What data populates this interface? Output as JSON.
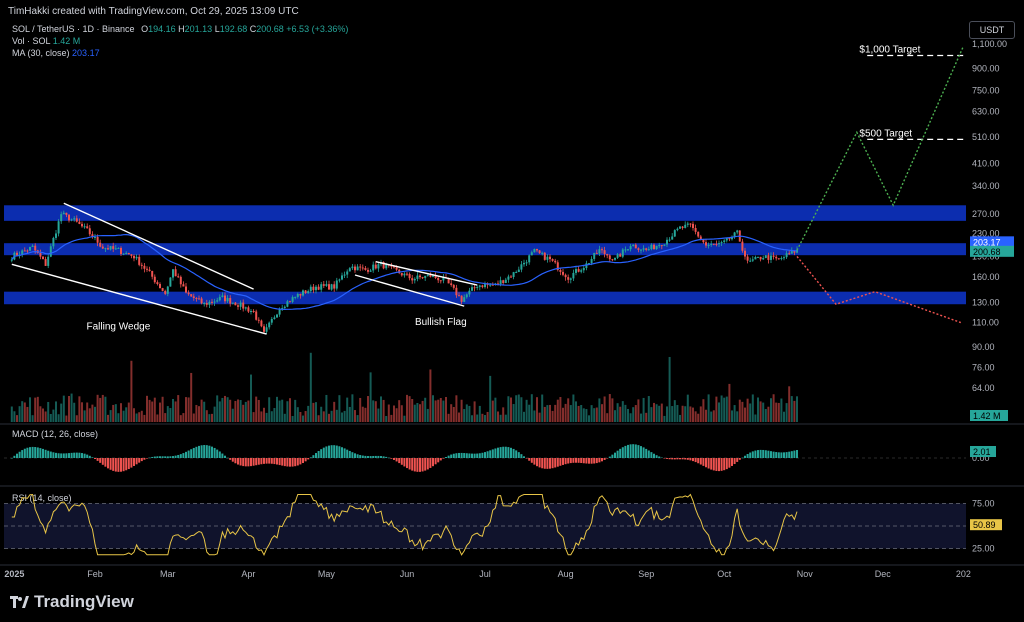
{
  "header": {
    "created_by": "TimHakki created with TradingView.com, Oct 29, 2025 13:09 UTC",
    "symbol": "SOL / TetherUS · 1D · Binance",
    "ohlc": {
      "o_label": "O",
      "o": "194.16",
      "h_label": "H",
      "h": "201.13",
      "l_label": "L",
      "l": "192.68",
      "c_label": "C",
      "c": "200.68",
      "change": "+6.53 (+3.36%)"
    },
    "vol_label": "Vol · SOL",
    "vol_value": "1.42 M",
    "ma_label": "MA (30, close)",
    "ma_value": "203.17",
    "currency": "USDT"
  },
  "brand": "TradingView",
  "colors": {
    "up": "#26a69a",
    "down": "#ef5350",
    "ma": "#2962ff",
    "zone": "#0d2fb8",
    "rsi": "#e8c547",
    "projection_up": "#4caf50",
    "projection_down": "#ef5350",
    "background": "#000000"
  },
  "chart_data": [
    {
      "type": "candlestick",
      "title": "SOL / TetherUS · 1D · Binance",
      "scale": "log",
      "x_tick_labels": [
        "2025",
        "Feb",
        "Mar",
        "Apr",
        "May",
        "Jun",
        "Jul",
        "Aug",
        "Sep",
        "Oct",
        "Nov",
        "Dec",
        "202"
      ],
      "y_tick_labels": [
        "1,100.00",
        "900.00",
        "750.00",
        "630.00",
        "510.00",
        "410.00",
        "340.00",
        "270.00",
        "230.00",
        "190.00",
        "160.00",
        "130.00",
        "110.00",
        "90.00",
        "76.00",
        "64.00"
      ],
      "ylim": [
        58,
        1100
      ],
      "last_price": 200.68,
      "ma_last": 203.17,
      "anchors": [
        {
          "date": "2024-12-31",
          "close": 190
        },
        {
          "date": "2025-01-08",
          "close": 205
        },
        {
          "date": "2025-01-13",
          "close": 178
        },
        {
          "date": "2025-01-19",
          "close": 270
        },
        {
          "date": "2025-01-24",
          "close": 255
        },
        {
          "date": "2025-01-29",
          "close": 235
        },
        {
          "date": "2025-02-04",
          "close": 205
        },
        {
          "date": "2025-02-10",
          "close": 200
        },
        {
          "date": "2025-02-16",
          "close": 190
        },
        {
          "date": "2025-02-22",
          "close": 165
        },
        {
          "date": "2025-02-28",
          "close": 140
        },
        {
          "date": "2025-03-03",
          "close": 170
        },
        {
          "date": "2025-03-08",
          "close": 140
        },
        {
          "date": "2025-03-15",
          "close": 128
        },
        {
          "date": "2025-03-22",
          "close": 135
        },
        {
          "date": "2025-03-28",
          "close": 128
        },
        {
          "date": "2025-04-03",
          "close": 120
        },
        {
          "date": "2025-04-07",
          "close": 100
        },
        {
          "date": "2025-04-13",
          "close": 125
        },
        {
          "date": "2025-04-20",
          "close": 138
        },
        {
          "date": "2025-04-27",
          "close": 148
        },
        {
          "date": "2025-05-04",
          "close": 148
        },
        {
          "date": "2025-05-10",
          "close": 175
        },
        {
          "date": "2025-05-16",
          "close": 170
        },
        {
          "date": "2025-05-22",
          "close": 178
        },
        {
          "date": "2025-05-28",
          "close": 168
        },
        {
          "date": "2025-06-03",
          "close": 158
        },
        {
          "date": "2025-06-10",
          "close": 162
        },
        {
          "date": "2025-06-16",
          "close": 155
        },
        {
          "date": "2025-06-22",
          "close": 133
        },
        {
          "date": "2025-06-28",
          "close": 150
        },
        {
          "date": "2025-07-05",
          "close": 150
        },
        {
          "date": "2025-07-12",
          "close": 165
        },
        {
          "date": "2025-07-20",
          "close": 198
        },
        {
          "date": "2025-07-26",
          "close": 185
        },
        {
          "date": "2025-08-02",
          "close": 160
        },
        {
          "date": "2025-08-09",
          "close": 178
        },
        {
          "date": "2025-08-14",
          "close": 200
        },
        {
          "date": "2025-08-20",
          "close": 185
        },
        {
          "date": "2025-08-26",
          "close": 210
        },
        {
          "date": "2025-09-01",
          "close": 200
        },
        {
          "date": "2025-09-08",
          "close": 215
        },
        {
          "date": "2025-09-14",
          "close": 240
        },
        {
          "date": "2025-09-18",
          "close": 245
        },
        {
          "date": "2025-09-24",
          "close": 208
        },
        {
          "date": "2025-09-30",
          "close": 210
        },
        {
          "date": "2025-10-06",
          "close": 230
        },
        {
          "date": "2025-10-10",
          "close": 180
        },
        {
          "date": "2025-10-16",
          "close": 190
        },
        {
          "date": "2025-10-22",
          "close": 185
        },
        {
          "date": "2025-10-29",
          "close": 200.68
        }
      ],
      "annotations": [
        {
          "text": "Falling Wedge"
        },
        {
          "text": "Bullish Flag"
        },
        {
          "text": "$1,000 Target",
          "price": 1000
        },
        {
          "text": "$500 Target",
          "price": 500
        }
      ],
      "zones": [
        {
          "low": 255,
          "high": 290
        },
        {
          "low": 192,
          "high": 212
        },
        {
          "low": 128,
          "high": 142
        }
      ],
      "projection_up": [
        {
          "date": "2025-10-29",
          "price": 200
        },
        {
          "date": "2025-11-21",
          "price": 530
        },
        {
          "date": "2025-12-05",
          "price": 290
        },
        {
          "date": "2026-01-01",
          "price": 1080
        }
      ],
      "projection_down": [
        {
          "date": "2025-10-29",
          "price": 190
        },
        {
          "date": "2025-11-13",
          "price": 128
        },
        {
          "date": "2025-11-28",
          "price": 142
        },
        {
          "date": "2025-12-31",
          "price": 110
        }
      ]
    },
    {
      "type": "bar",
      "title": "Vol · SOL",
      "last_value_label": "1.42 M"
    },
    {
      "type": "histogram",
      "title": "MACD (12, 26, close)",
      "last_value": 2.01,
      "zero_label": "0.00"
    },
    {
      "type": "line",
      "title": "RSI (14, close)",
      "last_value": 50.89,
      "levels": [
        75,
        50,
        25
      ],
      "level_labels": [
        "75.00",
        "25.00"
      ]
    }
  ]
}
